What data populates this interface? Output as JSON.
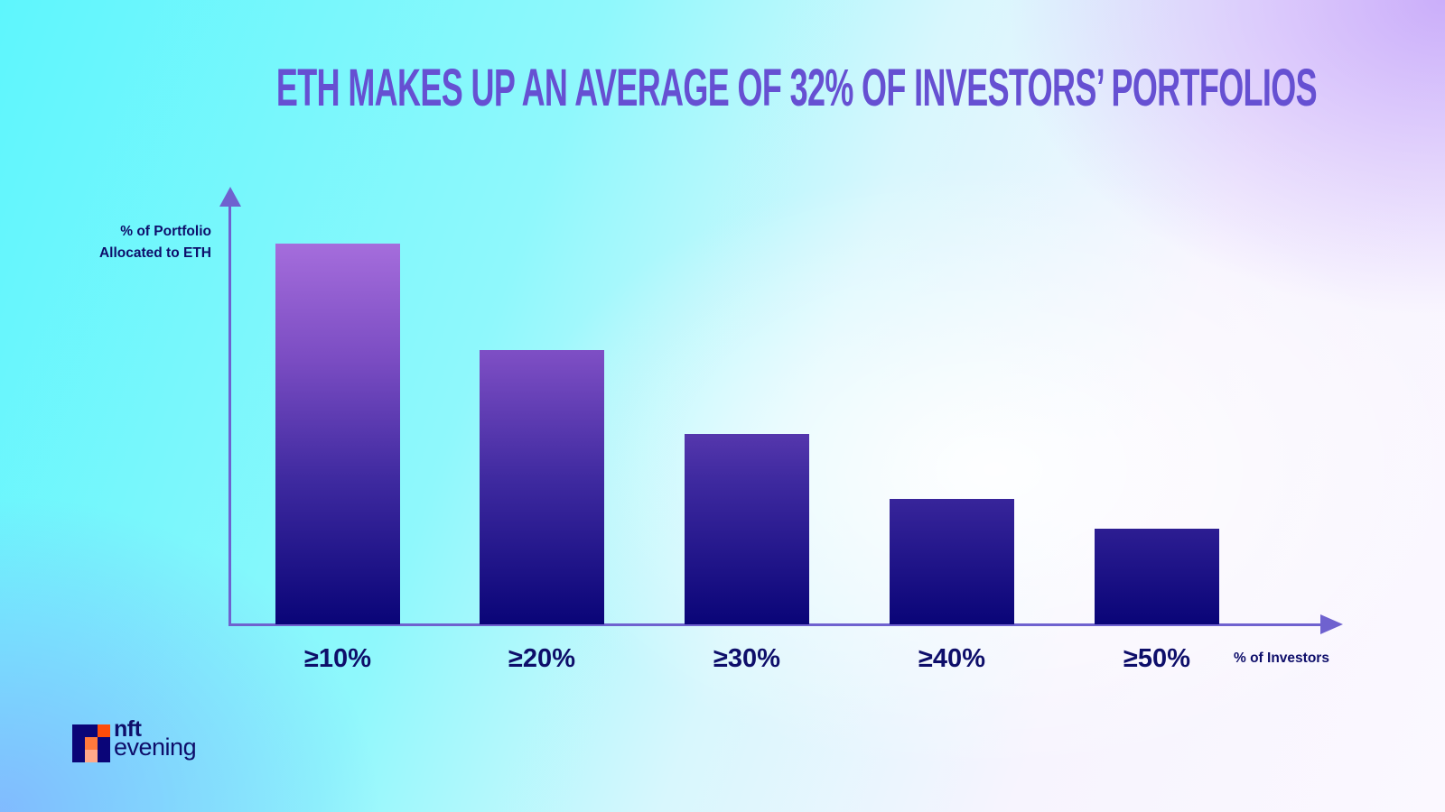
{
  "title": "ETH MAKES UP AN AVERAGE OF 32% OF INVESTORS’ PORTFOLIOS",
  "y_axis_label": [
    "% of Portfolio",
    "Allocated to ETH"
  ],
  "x_axis_label": "% of Investors",
  "brand": {
    "line1": "nft",
    "line2": "evening",
    "colors": [
      "#0a0578",
      "#ff4d0a",
      "#ff7a3d",
      "#ffa98a"
    ]
  },
  "colors": {
    "title": "#6650d2",
    "axis": "#6f62cf",
    "bar_top": "#a56ddc",
    "bar_bottom": "#0a0578",
    "text": "#0e0e6a"
  },
  "chart_data": {
    "type": "bar",
    "title": "ETH MAKES UP AN AVERAGE OF 32% OF INVESTORS’ PORTFOLIOS",
    "xlabel": "% of Investors",
    "ylabel": "% of Portfolio Allocated to ETH",
    "categories": [
      "≥10%",
      "≥20%",
      "≥30%",
      "≥40%",
      "≥50%"
    ],
    "values": [
      100,
      72,
      50,
      33,
      25
    ],
    "value_note": "relative bar heights (no numeric y-axis shown); tallest bar normalized to 100",
    "grid": false,
    "legend": "none",
    "ylim": [
      0,
      100
    ]
  }
}
